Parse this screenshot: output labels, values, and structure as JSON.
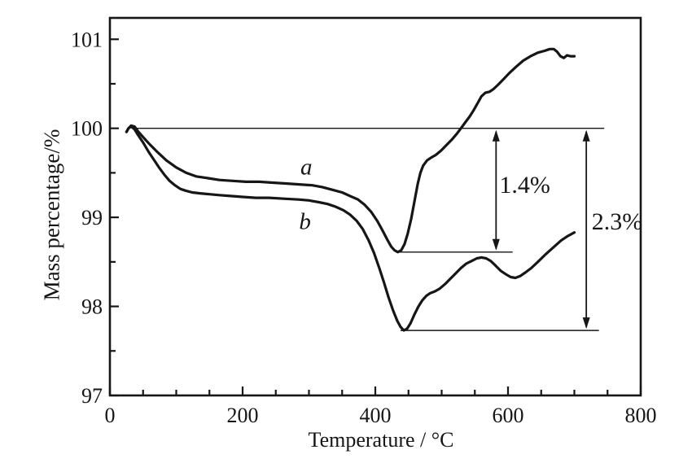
{
  "figure": {
    "background": "#ffffff",
    "ink": "#161616"
  },
  "chart_data": {
    "type": "line",
    "title": "",
    "xlabel": "Temperature / °C",
    "ylabel": "Mass percentage/%",
    "xlim": [
      0,
      800
    ],
    "ylim": [
      97,
      101.24
    ],
    "x_major_ticks": [
      0,
      200,
      400,
      600,
      800
    ],
    "x_minor_ticks": [
      50,
      100,
      150,
      250,
      300,
      350,
      450,
      500,
      550,
      650,
      700,
      750
    ],
    "y_major_ticks": [
      97,
      98,
      99,
      100,
      101
    ],
    "y_minor_ticks": [
      97.5,
      98.5,
      99.5,
      100.5
    ],
    "grid": false,
    "axes_box": true,
    "legend": "inline curve labels",
    "series": [
      {
        "name": "a",
        "label": "a",
        "label_pos": [
          296,
          99.56
        ],
        "points": [
          [
            25,
            99.96
          ],
          [
            28,
            100.0
          ],
          [
            32,
            100.03
          ],
          [
            37,
            100.02
          ],
          [
            42,
            99.97
          ],
          [
            50,
            99.9
          ],
          [
            60,
            99.82
          ],
          [
            72,
            99.73
          ],
          [
            85,
            99.64
          ],
          [
            100,
            99.56
          ],
          [
            115,
            99.5
          ],
          [
            130,
            99.46
          ],
          [
            148,
            99.44
          ],
          [
            165,
            99.42
          ],
          [
            185,
            99.41
          ],
          [
            205,
            99.4
          ],
          [
            225,
            99.4
          ],
          [
            245,
            99.39
          ],
          [
            265,
            99.38
          ],
          [
            285,
            99.37
          ],
          [
            305,
            99.36
          ],
          [
            320,
            99.34
          ],
          [
            335,
            99.31
          ],
          [
            350,
            99.28
          ],
          [
            362,
            99.24
          ],
          [
            374,
            99.2
          ],
          [
            384,
            99.14
          ],
          [
            394,
            99.06
          ],
          [
            403,
            98.96
          ],
          [
            411,
            98.85
          ],
          [
            418,
            98.75
          ],
          [
            424,
            98.67
          ],
          [
            429,
            98.63
          ],
          [
            434,
            98.61
          ],
          [
            439,
            98.63
          ],
          [
            444,
            98.7
          ],
          [
            449,
            98.82
          ],
          [
            454,
            98.98
          ],
          [
            459,
            99.18
          ],
          [
            464,
            99.38
          ],
          [
            468,
            99.5
          ],
          [
            472,
            99.58
          ],
          [
            478,
            99.64
          ],
          [
            484,
            99.67
          ],
          [
            491,
            99.7
          ],
          [
            499,
            99.75
          ],
          [
            507,
            99.81
          ],
          [
            515,
            99.87
          ],
          [
            523,
            99.94
          ],
          [
            530,
            100.01
          ],
          [
            536,
            100.07
          ],
          [
            542,
            100.13
          ],
          [
            548,
            100.2
          ],
          [
            554,
            100.28
          ],
          [
            560,
            100.36
          ],
          [
            566,
            100.4
          ],
          [
            572,
            100.41
          ],
          [
            578,
            100.44
          ],
          [
            585,
            100.49
          ],
          [
            593,
            100.55
          ],
          [
            602,
            100.62
          ],
          [
            612,
            100.69
          ],
          [
            623,
            100.76
          ],
          [
            634,
            100.81
          ],
          [
            645,
            100.85
          ],
          [
            655,
            100.87
          ],
          [
            663,
            100.89
          ],
          [
            669,
            100.89
          ],
          [
            674,
            100.86
          ],
          [
            679,
            100.81
          ],
          [
            684,
            100.79
          ],
          [
            689,
            100.82
          ],
          [
            694,
            100.81
          ],
          [
            700,
            100.81
          ]
        ]
      },
      {
        "name": "b",
        "label": "b",
        "label_pos": [
          294,
          98.95
        ],
        "points": [
          [
            25,
            99.96
          ],
          [
            28,
            100.0
          ],
          [
            32,
            100.02
          ],
          [
            37,
            99.99
          ],
          [
            42,
            99.93
          ],
          [
            50,
            99.84
          ],
          [
            58,
            99.74
          ],
          [
            66,
            99.65
          ],
          [
            74,
            99.56
          ],
          [
            82,
            99.48
          ],
          [
            90,
            99.41
          ],
          [
            98,
            99.36
          ],
          [
            106,
            99.32
          ],
          [
            114,
            99.3
          ],
          [
            124,
            99.28
          ],
          [
            136,
            99.27
          ],
          [
            150,
            99.26
          ],
          [
            165,
            99.25
          ],
          [
            182,
            99.24
          ],
          [
            200,
            99.23
          ],
          [
            220,
            99.22
          ],
          [
            240,
            99.22
          ],
          [
            262,
            99.21
          ],
          [
            284,
            99.2
          ],
          [
            300,
            99.19
          ],
          [
            315,
            99.17
          ],
          [
            328,
            99.15
          ],
          [
            340,
            99.12
          ],
          [
            352,
            99.08
          ],
          [
            362,
            99.03
          ],
          [
            372,
            98.96
          ],
          [
            381,
            98.87
          ],
          [
            390,
            98.74
          ],
          [
            398,
            98.6
          ],
          [
            406,
            98.43
          ],
          [
            413,
            98.27
          ],
          [
            420,
            98.1
          ],
          [
            427,
            97.95
          ],
          [
            433,
            97.84
          ],
          [
            438,
            97.77
          ],
          [
            443,
            97.73
          ],
          [
            448,
            97.75
          ],
          [
            453,
            97.81
          ],
          [
            459,
            97.91
          ],
          [
            465,
            98.0
          ],
          [
            471,
            98.07
          ],
          [
            477,
            98.12
          ],
          [
            483,
            98.15
          ],
          [
            490,
            98.17
          ],
          [
            497,
            98.2
          ],
          [
            505,
            98.25
          ],
          [
            513,
            98.31
          ],
          [
            521,
            98.37
          ],
          [
            529,
            98.43
          ],
          [
            537,
            98.48
          ],
          [
            545,
            98.51
          ],
          [
            553,
            98.54
          ],
          [
            560,
            98.55
          ],
          [
            567,
            98.54
          ],
          [
            574,
            98.51
          ],
          [
            581,
            98.46
          ],
          [
            589,
            98.4
          ],
          [
            597,
            98.36
          ],
          [
            604,
            98.33
          ],
          [
            611,
            98.32
          ],
          [
            618,
            98.34
          ],
          [
            626,
            98.38
          ],
          [
            635,
            98.43
          ],
          [
            645,
            98.5
          ],
          [
            656,
            98.58
          ],
          [
            668,
            98.66
          ],
          [
            680,
            98.74
          ],
          [
            690,
            98.79
          ],
          [
            700,
            98.83
          ]
        ]
      }
    ],
    "reference_lines": [
      {
        "name": "baseline-100",
        "y": 100,
        "x_from": 34,
        "x_to": 745
      },
      {
        "name": "min-line-a",
        "y": 98.61,
        "x_from": 431,
        "x_to": 607
      },
      {
        "name": "min-line-b",
        "y": 97.73,
        "x_from": 438,
        "x_to": 737
      }
    ],
    "arrows": [
      {
        "name": "mass-loss-a",
        "x": 582,
        "y_from": 100,
        "y_to": 98.61,
        "label": "1.4%",
        "label_pos": [
          587,
          99.36
        ]
      },
      {
        "name": "mass-loss-b",
        "x": 718,
        "y_from": 100,
        "y_to": 97.73,
        "label": "2.3%",
        "label_pos": [
          726,
          98.95
        ]
      }
    ]
  }
}
